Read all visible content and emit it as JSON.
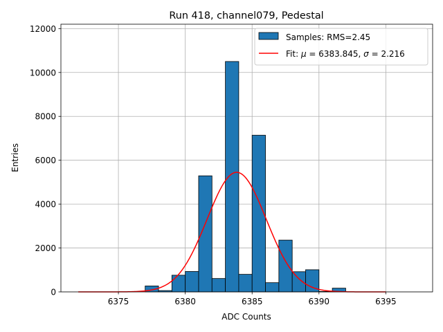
{
  "chart_data": {
    "type": "bar",
    "title": "Run 418, channel079, Pedestal",
    "xlabel": "ADC Counts",
    "ylabel": "Entries",
    "xlim": [
      6370.7,
      6398.5
    ],
    "ylim": [
      0,
      12200
    ],
    "grid": true,
    "legend_position": "top-right",
    "x_ticks": [
      6375,
      6380,
      6385,
      6390,
      6395
    ],
    "y_ticks": [
      0,
      2000,
      4000,
      6000,
      8000,
      10000,
      12000
    ],
    "histogram": {
      "label": "Samples: RMS=2.45",
      "color": "#1f77b4",
      "bin_width": 1.0,
      "bins": [
        {
          "x0": 6377.0,
          "value": 270
        },
        {
          "x0": 6378.0,
          "value": 60
        },
        {
          "x0": 6379.0,
          "value": 760
        },
        {
          "x0": 6380.0,
          "value": 930
        },
        {
          "x0": 6381.0,
          "value": 5290
        },
        {
          "x0": 6382.0,
          "value": 610
        },
        {
          "x0": 6383.0,
          "value": 10500
        },
        {
          "x0": 6384.0,
          "value": 800
        },
        {
          "x0": 6385.0,
          "value": 7140
        },
        {
          "x0": 6386.0,
          "value": 420
        },
        {
          "x0": 6387.0,
          "value": 2360
        },
        {
          "x0": 6388.0,
          "value": 920
        },
        {
          "x0": 6389.0,
          "value": 1010
        },
        {
          "x0": 6390.0,
          "value": 20
        },
        {
          "x0": 6391.0,
          "value": 170
        }
      ]
    },
    "fit": {
      "label_prefix": "Fit: ",
      "mu_symbol": "μ",
      "mu_text": " = 6383.845, ",
      "sigma_symbol": "σ",
      "sigma_text": " = 2.216",
      "mu": 6383.845,
      "sigma": 2.216,
      "amplitude": 5450,
      "x_range": [
        6372,
        6395
      ],
      "color": "#ff0000"
    }
  }
}
